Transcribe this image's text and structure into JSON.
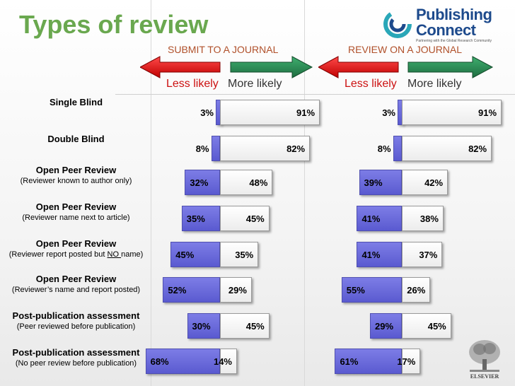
{
  "title": "Types of review",
  "logo": {
    "line1": "Publishing",
    "line2": "Connect",
    "tagline": "Partnering with the Global Research Community",
    "icon": "publishing-connect-swirl-icon"
  },
  "publisher_logo": {
    "name": "ELSEVIER",
    "icon": "elsevier-tree-icon"
  },
  "panels": [
    {
      "label": "SUBMIT TO A JOURNAL",
      "less": "Less likely",
      "more": "More likely"
    },
    {
      "label": "REVIEW ON A JOURNAL",
      "less": "Less likely",
      "more": "More likely"
    }
  ],
  "colors": {
    "title": "#6aa84f",
    "less_likely_bar": "#6666dd",
    "more_likely_bar": "#ffffff",
    "less_arrow": "#dd1111",
    "more_arrow": "#2e8b57"
  },
  "rows": [
    {
      "main": "Single Blind",
      "sub": ""
    },
    {
      "main": "Double Blind",
      "sub": ""
    },
    {
      "main": "Open Peer Review",
      "sub": "(Reviewer known to author only)"
    },
    {
      "main": "Open Peer Review",
      "sub": "(Reviewer name next to article)"
    },
    {
      "main": "Open Peer Review",
      "sub_pre": "(Reviewer report posted but ",
      "sub_u": "NO ",
      "sub_post": "name)"
    },
    {
      "main": "Open Peer Review",
      "sub": "(Reviewer’s name and report posted)"
    },
    {
      "main": "Post-publication assessment",
      "sub": "(Peer reviewed before publication)"
    },
    {
      "main": "Post-publication assessment",
      "sub": "(No peer review before publication)"
    }
  ],
  "chart_data": [
    {
      "type": "bar",
      "title": "SUBMIT TO A JOURNAL",
      "categories": [
        "Single Blind",
        "Double Blind",
        "Open Peer Review (Reviewer known to author only)",
        "Open Peer Review (Reviewer name next to article)",
        "Open Peer Review (Reviewer report posted but NO name)",
        "Open Peer Review (Reviewer’s name and report posted)",
        "Post-publication assessment (Peer reviewed before publication)",
        "Post-publication assessment (No peer review before publication)"
      ],
      "series": [
        {
          "name": "Less likely",
          "values": [
            3,
            8,
            32,
            35,
            45,
            52,
            30,
            68
          ],
          "labels": [
            "3%",
            "8%",
            "32%",
            "35%",
            "45%",
            "52%",
            "30%",
            "68%"
          ]
        },
        {
          "name": "More likely",
          "values": [
            91,
            82,
            48,
            45,
            35,
            29,
            45,
            14
          ],
          "labels": [
            "91%",
            "82%",
            "48%",
            "45%",
            "35%",
            "29%",
            "45%",
            "14%"
          ]
        }
      ]
    },
    {
      "type": "bar",
      "title": "REVIEW ON A JOURNAL",
      "categories": [
        "Single Blind",
        "Double Blind",
        "Open Peer Review (Reviewer known to author only)",
        "Open Peer Review (Reviewer name next to article)",
        "Open Peer Review (Reviewer report posted but NO name)",
        "Open Peer Review (Reviewer’s name and report posted)",
        "Post-publication assessment (Peer reviewed before publication)",
        "Post-publication assessment (No peer review before publication)"
      ],
      "series": [
        {
          "name": "Less likely",
          "values": [
            3,
            8,
            39,
            41,
            41,
            55,
            29,
            61
          ],
          "labels": [
            "3%",
            "8%",
            "39%",
            "41%",
            "41%",
            "55%",
            "29%",
            "61%"
          ]
        },
        {
          "name": "More likely",
          "values": [
            91,
            82,
            42,
            38,
            37,
            26,
            45,
            17
          ],
          "labels": [
            "91%",
            "82%",
            "42%",
            "38%",
            "37%",
            "26%",
            "45%",
            "17%"
          ]
        }
      ]
    }
  ]
}
